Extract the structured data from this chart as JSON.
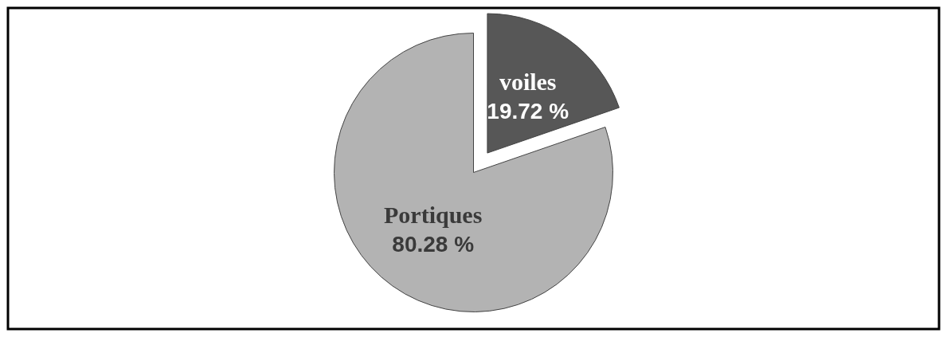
{
  "chart_data": {
    "type": "pie",
    "categories": [
      "Portiques",
      "voiles"
    ],
    "values": [
      80.28,
      19.72
    ],
    "colors": [
      "#b3b3b3",
      "#575757"
    ],
    "value_labels": [
      "80.28 %",
      "19.72 %"
    ]
  }
}
